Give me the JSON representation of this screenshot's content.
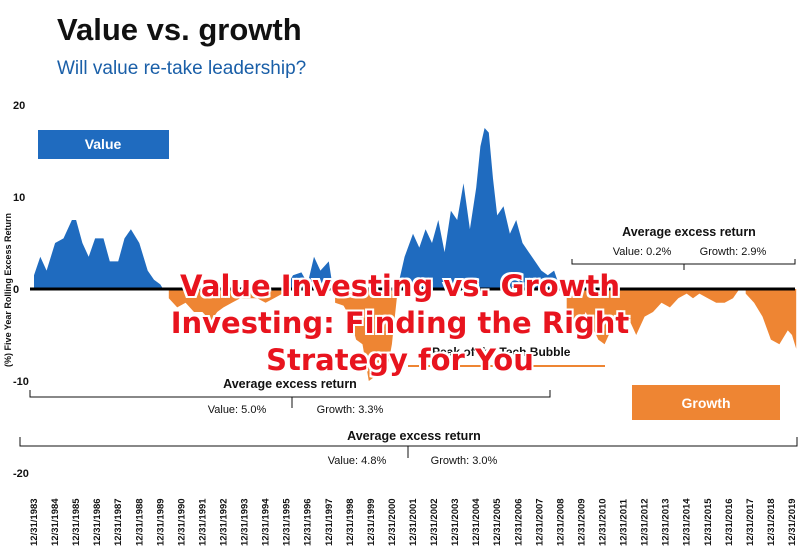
{
  "header": {
    "title": "Value vs. growth",
    "subtitle": "Will value re-take leadership?"
  },
  "overlay": {
    "lines": [
      "Value Investing vs. Growth",
      "Investing: Finding the Right",
      "Strategy for You"
    ]
  },
  "chart_data": {
    "type": "area",
    "ylabel": "(%) Five Year Rolling Excess Return",
    "ylim": [
      -20,
      20
    ],
    "yticks": [
      20,
      10,
      0,
      -10,
      -20
    ],
    "xlim": [
      1983,
      2019
    ],
    "categories": [
      "12/31/1983",
      "12/31/1984",
      "12/31/1985",
      "12/31/1986",
      "12/31/1987",
      "12/31/1988",
      "12/31/1989",
      "12/31/1990",
      "12/31/1991",
      "12/31/1992",
      "12/31/1993",
      "12/31/1994",
      "12/31/1995",
      "12/31/1996",
      "12/31/1997",
      "12/31/1998",
      "12/31/1999",
      "12/31/2000",
      "12/31/2001",
      "12/31/2002",
      "12/31/2003",
      "12/31/2004",
      "12/31/2005",
      "12/31/2006",
      "12/31/2007",
      "12/31/2008",
      "12/31/2009",
      "12/31/2010",
      "12/31/2011",
      "12/31/2012",
      "12/31/2013",
      "12/31/2014",
      "12/31/2015",
      "12/31/2016",
      "12/31/2017",
      "12/31/2018",
      "12/31/2019"
    ],
    "x": [
      1983.0,
      1983.3,
      1983.6,
      1984.0,
      1984.4,
      1984.8,
      1985.0,
      1985.3,
      1985.6,
      1985.9,
      1986.3,
      1986.6,
      1987.0,
      1987.3,
      1987.6,
      1988.0,
      1988.4,
      1988.7,
      1989.0,
      1989.4,
      1989.8,
      1990.2,
      1990.6,
      1991.0,
      1991.4,
      1991.7,
      1992.0,
      1992.4,
      1992.8,
      1993.2,
      1993.6,
      1994.0,
      1994.4,
      1994.8,
      1995.0,
      1995.3,
      1995.7,
      1996.0,
      1996.3,
      1996.6,
      1997.0,
      1997.3,
      1997.7,
      1998.0,
      1998.3,
      1998.6,
      1998.9,
      1999.2,
      1999.5,
      1999.8,
      2000.0,
      2000.3,
      2000.6,
      2001.0,
      2001.3,
      2001.6,
      2001.9,
      2002.2,
      2002.5,
      2002.8,
      2003.1,
      2003.4,
      2003.7,
      2004.0,
      2004.2,
      2004.4,
      2004.6,
      2004.8,
      2005.0,
      2005.3,
      2005.6,
      2005.9,
      2006.2,
      2006.5,
      2006.8,
      2007.1,
      2007.4,
      2007.7,
      2008.0,
      2008.3,
      2008.6,
      2008.9,
      2009.2,
      2009.5,
      2009.8,
      2010.1,
      2010.4,
      2010.7,
      2011.0,
      2011.3,
      2011.6,
      2012.0,
      2012.4,
      2012.8,
      2013.2,
      2013.6,
      2014.0,
      2014.3,
      2014.6,
      2015.0,
      2015.4,
      2015.8,
      2016.2,
      2016.5,
      2016.8,
      2017.2,
      2017.6,
      2018.0,
      2018.4,
      2018.8,
      2019.0,
      2019.2
    ],
    "y": [
      1.5,
      3.5,
      2.0,
      5.0,
      5.5,
      7.5,
      7.5,
      5.0,
      3.5,
      5.5,
      5.5,
      3.0,
      3.0,
      5.5,
      6.5,
      5.0,
      2.0,
      1.0,
      0.5,
      -1.0,
      -2.0,
      -1.5,
      -2.5,
      -2.5,
      -3.5,
      -2.5,
      -2.0,
      -1.5,
      -1.0,
      -1.0,
      -1.0,
      -1.5,
      -1.0,
      -0.5,
      0.3,
      1.5,
      1.8,
      0.6,
      3.5,
      2.0,
      3.0,
      -1.5,
      -1.8,
      -3.0,
      -5.5,
      -6.0,
      -10.0,
      -9.5,
      -7.5,
      -8.5,
      -6.0,
      0.5,
      3.5,
      6.0,
      4.5,
      6.5,
      5.0,
      7.5,
      4.0,
      8.5,
      7.5,
      11.5,
      6.5,
      11.0,
      15.5,
      17.5,
      17.0,
      12.0,
      8.0,
      9.0,
      6.0,
      7.5,
      5.0,
      4.0,
      3.0,
      2.0,
      1.5,
      2.0,
      0.0,
      -2.5,
      -3.5,
      -4.0,
      -2.5,
      -4.0,
      -5.5,
      -6.0,
      -4.5,
      -3.0,
      -2.5,
      -3.5,
      -5.0,
      -3.0,
      -2.5,
      -1.5,
      -2.0,
      -1.0,
      -0.5,
      -1.0,
      -0.5,
      -1.0,
      -1.5,
      -1.5,
      -1.0,
      0.0,
      -0.5,
      -1.5,
      -3.0,
      -5.5,
      -6.0,
      -4.5,
      -5.0,
      -6.5
    ],
    "series_colors": {
      "positive": "#1f6bbf",
      "negative": "#ee8533"
    },
    "legend": [
      {
        "label": "Value",
        "color": "#1f6bbf",
        "placement": "top-left"
      },
      {
        "label": "Growth",
        "color": "#ee8533",
        "placement": "bottom-right"
      }
    ],
    "annotations": {
      "bubble": "Peak of the Tech Bubble",
      "recent_title": "Average excess return",
      "recent_value": "Value: 0.2%",
      "recent_growth": "Growth: 2.9%",
      "early_title": "Average excess return",
      "early_value": "Value: 5.0%",
      "early_growth": "Growth: 3.3%",
      "full_title": "Average excess return",
      "full_value": "Value: 4.8%",
      "full_growth": "Growth: 3.0%"
    }
  }
}
